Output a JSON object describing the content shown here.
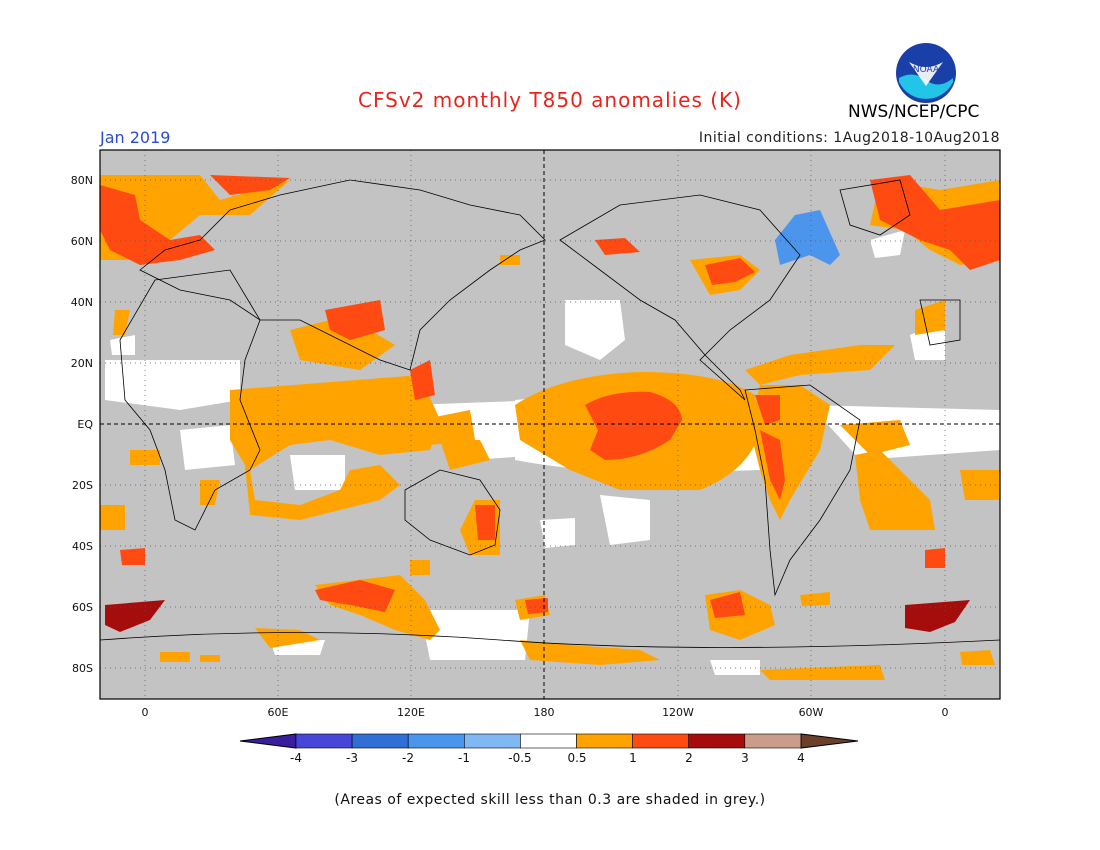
{
  "header": {
    "title": "CFSv2 monthly T850 anomalies (K)",
    "agency": "NWS/NCEP/CPC",
    "logo_text": "NOAA",
    "month": "Jan 2019",
    "initial_conditions": "Initial conditions: 1Aug2018-10Aug2018"
  },
  "axes": {
    "lat_ticks": [
      "80N",
      "60N",
      "40N",
      "20N",
      "EQ",
      "20S",
      "40S",
      "60S",
      "80S"
    ],
    "lon_ticks": [
      "0",
      "60E",
      "120E",
      "180",
      "120W",
      "60W",
      "0"
    ]
  },
  "colorbar": {
    "labels": [
      "-4",
      "-3",
      "-2",
      "-1",
      "-0.5",
      "0.5",
      "1",
      "2",
      "3",
      "4"
    ],
    "colors": [
      "#3a1ea0",
      "#4646d8",
      "#2f6fd6",
      "#4c95ec",
      "#7fb8f2",
      "#ffffff",
      "#ffa300",
      "#ff4a12",
      "#a50d0d",
      "#c99c8c",
      "#6b3f2a"
    ]
  },
  "colors": {
    "grey_low_skill": "#c3c3c3",
    "warm_1": "#ffa300",
    "warm_2": "#ff4a12",
    "warm_3": "#a50d0d",
    "cool_1": "#4c95ec",
    "title_red": "#e8241c",
    "month_blue": "#2a4bd7"
  },
  "footnote": "(Areas of expected skill less than 0.3 are shaded in grey.)"
}
